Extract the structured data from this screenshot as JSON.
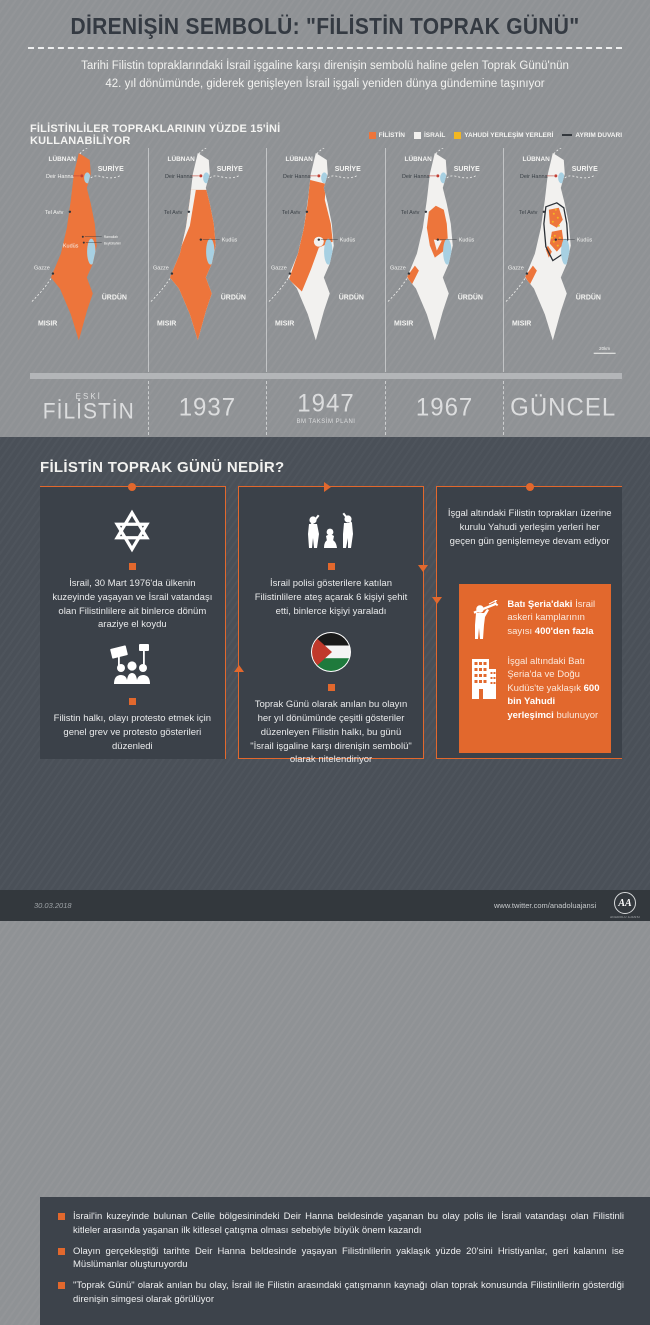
{
  "colors": {
    "palestine_orange": "#ED753B",
    "israel_white": "#F2F1EF",
    "settlement_yellow": "#F2B722",
    "wall_dark": "#2B3036",
    "accent_orange": "#E2682D",
    "lake_blue": "#A7D0E2",
    "deir_hanna_red": "#C24035"
  },
  "header": {
    "title": "DİRENİŞİN SEMBOLÜ: \"FİLİSTİN TOPRAK GÜNÜ\"",
    "subtitle_line1": "Tarihi Filistin topraklarındaki İsrail işgaline karşı direnişin sembolü haline gelen Toprak Günü'nün",
    "subtitle_line2": "42. yıl dönümünde, giderek genişleyen İsrail işgali yeniden dünya gündemine taşınıyor"
  },
  "maps_section": {
    "heading": "FİLİSTİNLİLER TOPRAKLARININ YÜZDE 15'İNİ KULLANABİLİYOR",
    "legend": [
      {
        "label": "FİLİSTİN",
        "color": "#ED753B",
        "type": "box"
      },
      {
        "label": "İSRAİL",
        "color": "#F2F1EF",
        "type": "box"
      },
      {
        "label": "YAHUDİ YERLEŞİM YERLERİ",
        "color": "#F2B722",
        "type": "box"
      },
      {
        "label": "AYRIM DUVARI",
        "color": "#33383D",
        "type": "line"
      }
    ],
    "map_labels": {
      "lebanon": "LÜBNAN",
      "syria": "SURİYE",
      "deir_hanna": "Deir Hanna",
      "tel_aviv": "Tel Aviv",
      "jerusalem": "Kudüs",
      "gaza": "Gazze",
      "jordan": "ÜRDÜN",
      "egypt": "MISIR",
      "ramallah": "Ramallah",
      "bethlehem": "Beytüllahim"
    },
    "scale_label": "20km",
    "maps": [
      {
        "variant": "old",
        "caption_top": "ESKİ",
        "caption": "FİLİSTİN",
        "caption_sub": ""
      },
      {
        "variant": "y1937",
        "caption_top": "",
        "caption": "1937",
        "caption_sub": ""
      },
      {
        "variant": "y1947",
        "caption_top": "",
        "caption": "1947",
        "caption_sub": "BM TAKSİM PLANI"
      },
      {
        "variant": "y1967",
        "caption_top": "",
        "caption": "1967",
        "caption_sub": ""
      },
      {
        "variant": "current",
        "caption_top": "",
        "caption": "GÜNCEL",
        "caption_sub": ""
      }
    ]
  },
  "what_section": {
    "title": "FİLİSTİN TOPRAK GÜNÜ NEDİR?",
    "box1_item1": "İsrail, 30 Mart 1976'da ülkenin kuzeyinde yaşayan ve İsrail vatandaşı olan Filistinlilere ait binlerce dönüm araziye el koydu",
    "box1_item2": "Filistin halkı, olayı protesto etmek için genel grev ve protesto gösterileri düzenledi",
    "box2_item1": "İsrail polisi gösterilere katılan Filistinlilere ateş açarak 6 kişiyi şehit etti, binlerce kişiyi yaraladı",
    "box2_item2": "Toprak Günü olarak anılan bu olayın her yıl dönümünde çeşitli gösteriler düzenleyen Filistin halkı, bu günü \"İsrail işgaline karşı direnişin sembolü\" olarak nitelendiriyor",
    "box3_intro": "İşgal altındaki Filistin toprakları üzerine kurulu Yahudi yerleşim yerleri her geçen gün genişlemeye devam ediyor",
    "stat1": {
      "bold1": "Batı Şeria'daki ",
      "text1": "İsrail askeri kamplarının sayısı ",
      "bold2": "400'den fazla"
    },
    "stat2": {
      "text1": "İşgal altındaki Batı Şeria'da ve Doğu Kudüs'te yaklaşık ",
      "bold1": "600 bin Yahudi yerleşimci",
      "text2": " bulunuyor"
    }
  },
  "bullets": [
    "İsrail'in kuzeyinde bulunan Celile bölgesinindeki Deir Hanna beldesinde yaşanan bu olay polis ile İsrail vatandaşı olan Filistinli kitleler arasında yaşanan ilk kitlesel çatışma olması sebebiyle büyük önem kazandı",
    "Olayın gerçekleştiği tarihte Deir Hanna beldesinde yaşayan Filistinlilerin yaklaşık yüzde 20'sini Hristiyanlar, geri kalanını ise Müslümanlar oluşturuyordu",
    "\"Toprak Günü\" olarak anılan bu olay, İsrail ile Filistin arasındaki çatışmanın kaynağı olan toprak konusunda Filistinlilerin gösterdiği direnişin simgesi olarak görülüyor"
  ],
  "footer": {
    "date": "30.03.2018",
    "url": "www.twitter.com/anadoluajansi",
    "logo": "AA",
    "logo_sub": "ANADOLU AJANSI"
  }
}
